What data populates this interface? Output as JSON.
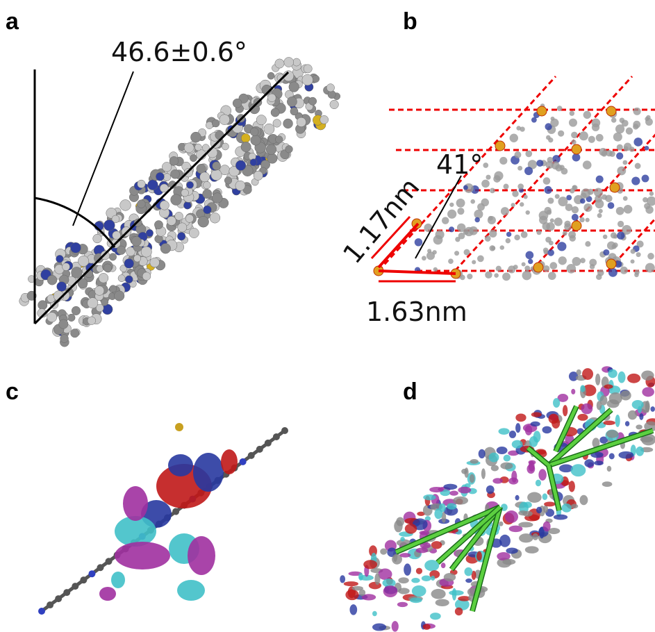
{
  "panels": [
    {
      "label": "a",
      "annotations": [
        "46.6±0.6°"
      ]
    },
    {
      "label": "b",
      "annotations": [
        "41°",
        "1.17nm",
        "1.63nm"
      ]
    },
    {
      "label": "c"
    },
    {
      "label": "d"
    }
  ]
}
